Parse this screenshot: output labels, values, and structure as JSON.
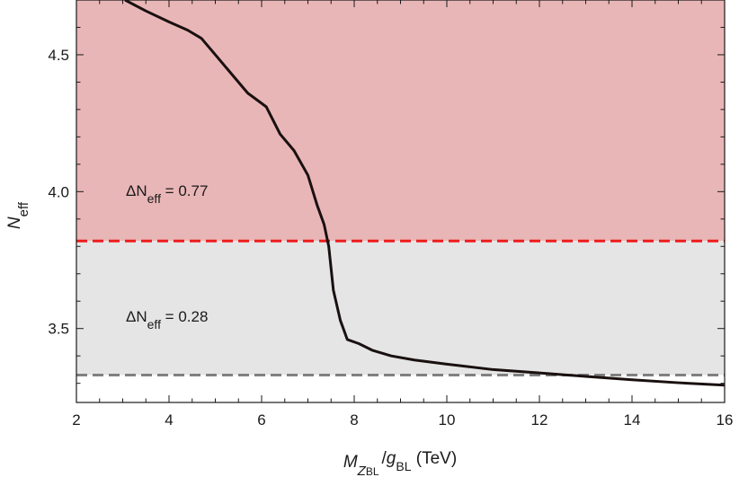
{
  "chart_data": {
    "type": "line",
    "xlabel_parts": {
      "M": "M",
      "Z": "Z",
      "BL_sub": "BL",
      "slash": "/",
      "g": "g",
      "BL_sub2": "BL",
      "unit": " (TeV)"
    },
    "ylabel_parts": {
      "N": "N",
      "sub": "eff"
    },
    "xlim": [
      2,
      16
    ],
    "ylim": [
      3.23,
      4.7
    ],
    "xticks": [
      2,
      4,
      6,
      8,
      10,
      12,
      14,
      16
    ],
    "yticks": [
      3.5,
      4.0,
      4.5
    ],
    "ytick_labels": [
      "3.5",
      "4.0",
      "4.5"
    ],
    "grid": false,
    "bands": [
      {
        "ymin": 3.82,
        "ymax": 4.7,
        "color": "#e9b6b7"
      },
      {
        "ymin": 3.33,
        "ymax": 3.82,
        "color": "#e5e5e5"
      }
    ],
    "reference_lines": [
      {
        "y": 3.82,
        "color": "#ee1c1c",
        "style": "dashed",
        "label_prefix": "ΔN",
        "label_sub": "eff",
        "label_suffix": " = 0.77"
      },
      {
        "y": 3.33,
        "color": "#808080",
        "style": "dashed",
        "label_prefix": "ΔN",
        "label_sub": "eff",
        "label_suffix": " = 0.28"
      }
    ],
    "series": [
      {
        "color": "#1a1010",
        "x": [
          3.05,
          3.5,
          4.0,
          4.4,
          4.7,
          5.0,
          5.3,
          5.7,
          6.1,
          6.4,
          6.7,
          7.0,
          7.2,
          7.35,
          7.45,
          7.55,
          7.7,
          7.85,
          8.1,
          8.4,
          8.8,
          9.3,
          10.0,
          11.0,
          12.0,
          13.0,
          14.0,
          15.0,
          16.0
        ],
        "y": [
          4.7,
          4.66,
          4.62,
          4.59,
          4.56,
          4.5,
          4.44,
          4.36,
          4.31,
          4.21,
          4.15,
          4.06,
          3.95,
          3.88,
          3.8,
          3.64,
          3.53,
          3.46,
          3.445,
          3.42,
          3.4,
          3.385,
          3.37,
          3.35,
          3.338,
          3.325,
          3.313,
          3.302,
          3.293
        ]
      }
    ]
  }
}
